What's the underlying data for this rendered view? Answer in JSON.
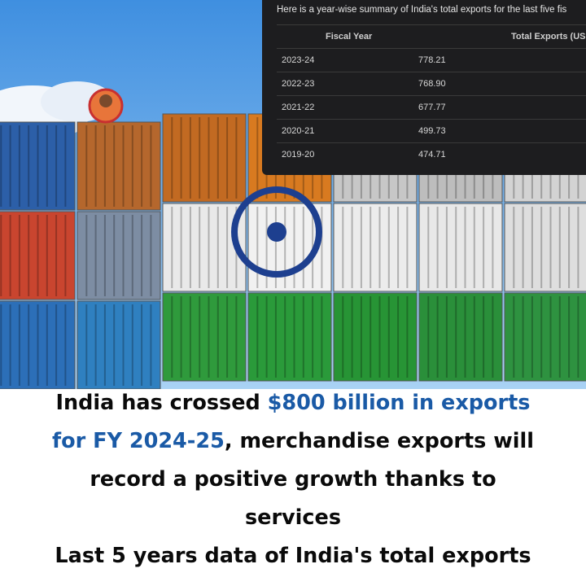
{
  "table": {
    "intro": "Here is a year-wise summary of India's total exports for the last five fis",
    "headers": [
      "Fiscal Year",
      "Total Exports (USD"
    ],
    "rows": [
      [
        "2023-24",
        "778.21"
      ],
      [
        "2022-23",
        "768.90"
      ],
      [
        "2021-22",
        "677.77"
      ],
      [
        "2020-21",
        "499.73"
      ],
      [
        "2019-20",
        "474.71"
      ]
    ]
  },
  "caption": {
    "lines": [
      [
        {
          "text": "India has crossed ",
          "highlight": false
        },
        {
          "text": "$800 billion in exports",
          "highlight": true
        }
      ],
      [
        {
          "text": "for FY 2024-25",
          "highlight": true
        },
        {
          "text": ", merchandise exports will",
          "highlight": false
        }
      ],
      [
        {
          "text": "record a positive growth thanks to",
          "highlight": false
        }
      ],
      [
        {
          "text": "services",
          "highlight": false
        }
      ],
      [
        {
          "text": "Last 5 years data of India's total exports",
          "highlight": false
        }
      ]
    ]
  }
}
